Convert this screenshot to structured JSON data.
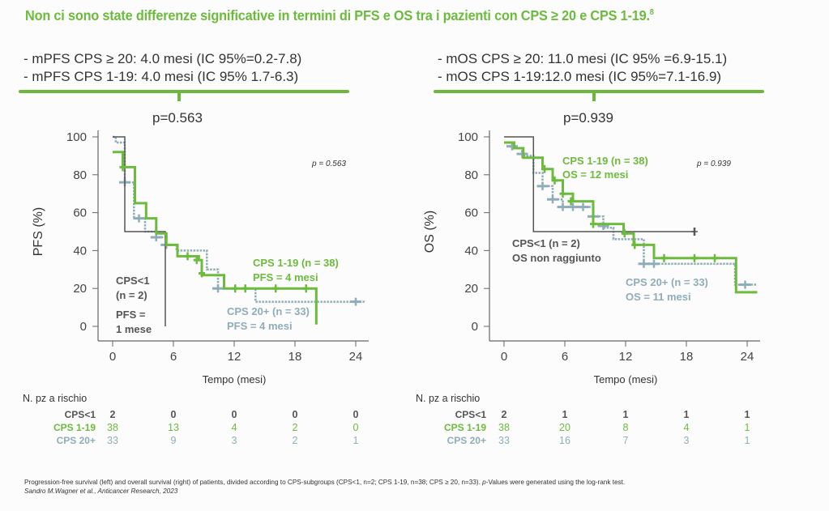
{
  "title": "Non ci sono state differenze significative in termini di PFS e OS tra i pazienti con CPS ≥ 20 e CPS 1-19.",
  "title_ref": "8",
  "colors": {
    "cps_lt1": "#555555",
    "cps_1_19": "#6cbb3c",
    "cps_20plus": "#8fadb8",
    "accent": "#6db73c"
  },
  "left_panel": {
    "median_lines": [
      "- mPFS CPS ≥ 20: 4.0 mesi (IC 95%=0.2-7.8)",
      "- mPFS CPS 1-19: 4.0 mesi (IC 95% 1.7-6.3)"
    ],
    "p_value_label": "p=0.563"
  },
  "right_panel": {
    "median_lines": [
      "- mOS CPS ≥ 20: 11.0 mesi (IC 95% =6.9-15.1)",
      "- mOS CPS 1-19:12.0 mesi (IC 95%=7.1-16.9)"
    ],
    "p_value_label": "p=0.939"
  },
  "chart_data": [
    {
      "type": "line",
      "subtype": "kaplan-meier",
      "title": "",
      "xlabel": "Tempo (mesi)",
      "ylabel": "PFS (%)",
      "xlim": [
        0,
        25
      ],
      "ylim": [
        0,
        100
      ],
      "xticks": [
        "0",
        "6",
        "12",
        "18",
        "24"
      ],
      "yticks": [
        "0",
        "20",
        "40",
        "60",
        "80",
        "100"
      ],
      "annotation_p": "p = 0.563",
      "annotations": [
        {
          "series": "CPS<1",
          "lines": [
            "CPS<1",
            "(n = 2)",
            "PFS =",
            "1 mese"
          ]
        },
        {
          "series": "CPS 1-19",
          "lines": [
            "CPS 1-19 (n = 38)",
            "PFS = 4 mesi"
          ]
        },
        {
          "series": "CPS 20+",
          "lines": [
            "CPS 20+ (n = 33)",
            "PFS = 4 mesi"
          ]
        }
      ],
      "series": [
        {
          "name": "CPS<1",
          "style": "solid-thin",
          "steps": [
            [
              0,
              100
            ],
            [
              1.2,
              100
            ],
            [
              1.2,
              50
            ],
            [
              5.2,
              50
            ],
            [
              5.2,
              0
            ]
          ],
          "censors": []
        },
        {
          "name": "CPS 1-19",
          "style": "solid-thick",
          "steps": [
            [
              0,
              92
            ],
            [
              1,
              92
            ],
            [
              1,
              84
            ],
            [
              2.2,
              84
            ],
            [
              2.2,
              65
            ],
            [
              3.3,
              65
            ],
            [
              3.3,
              57
            ],
            [
              4.3,
              57
            ],
            [
              4.3,
              49
            ],
            [
              5.3,
              49
            ],
            [
              5.3,
              43
            ],
            [
              6.4,
              43
            ],
            [
              6.4,
              37
            ],
            [
              8.5,
              37
            ],
            [
              8.5,
              35
            ],
            [
              8.8,
              35
            ],
            [
              8.8,
              27
            ],
            [
              11.0,
              27
            ],
            [
              11.0,
              20
            ],
            [
              20.1,
              20
            ],
            [
              20.1,
              1
            ]
          ],
          "censors": [
            [
              1,
              84
            ],
            [
              7.4,
              37
            ],
            [
              8.3,
              35
            ],
            [
              8.8,
              28
            ],
            [
              12.1,
              20
            ],
            [
              13.1,
              20
            ],
            [
              16.1,
              20
            ],
            [
              19.1,
              20
            ]
          ]
        },
        {
          "name": "CPS 20+",
          "style": "dotted",
          "steps": [
            [
              0,
              100
            ],
            [
              0.3,
              100
            ],
            [
              0.3,
              97
            ],
            [
              1.2,
              97
            ],
            [
              1.2,
              76
            ],
            [
              2.1,
              76
            ],
            [
              2.1,
              57
            ],
            [
              3.2,
              57
            ],
            [
              3.2,
              50
            ],
            [
              4.3,
              50
            ],
            [
              4.3,
              47
            ],
            [
              5.3,
              47
            ],
            [
              5.3,
              43
            ],
            [
              6.3,
              43
            ],
            [
              6.3,
              40
            ],
            [
              9.3,
              40
            ],
            [
              9.3,
              30
            ],
            [
              10.4,
              30
            ],
            [
              10.4,
              20
            ],
            [
              14.1,
              20
            ],
            [
              14.1,
              13
            ],
            [
              25,
              13
            ]
          ],
          "censors": [
            [
              1.2,
              76
            ],
            [
              2.6,
              57
            ],
            [
              4.3,
              47
            ],
            [
              5.3,
              43
            ],
            [
              10.4,
              20
            ],
            [
              24,
              13
            ]
          ]
        }
      ],
      "at_risk": {
        "label": "N. pz a rischio",
        "times": [
          0,
          6,
          12,
          18,
          24
        ],
        "rows": [
          {
            "name": "CPS<1",
            "values": [
              2,
              0,
              0,
              0,
              0
            ]
          },
          {
            "name": "CPS 1-19",
            "values": [
              38,
              13,
              4,
              2,
              0
            ]
          },
          {
            "name": "CPS 20+",
            "values": [
              33,
              9,
              3,
              2,
              1
            ]
          }
        ]
      }
    },
    {
      "type": "line",
      "subtype": "kaplan-meier",
      "title": "",
      "xlabel": "Tempo (mesi)",
      "ylabel": "OS (%)",
      "xlim": [
        0,
        25
      ],
      "ylim": [
        0,
        100
      ],
      "xticks": [
        "0",
        "6",
        "12",
        "18",
        "24"
      ],
      "yticks": [
        "0",
        "20",
        "40",
        "60",
        "80",
        "100"
      ],
      "annotation_p": "p = 0.939",
      "annotations": [
        {
          "series": "CPS 1-19",
          "lines": [
            "CPS 1-19 (n = 38)",
            "OS = 12 mesi"
          ]
        },
        {
          "series": "CPS<1",
          "lines": [
            "CPS<1 (n = 2)",
            "OS non raggiunto"
          ]
        },
        {
          "series": "CPS 20+",
          "lines": [
            "CPS 20+ (n = 33)",
            "OS = 11 mesi"
          ]
        }
      ],
      "series": [
        {
          "name": "CPS<1",
          "style": "solid-thin",
          "steps": [
            [
              0,
              100
            ],
            [
              2.9,
              100
            ],
            [
              2.9,
              50
            ],
            [
              18.8,
              50
            ]
          ],
          "censors": [
            [
              18.8,
              50
            ]
          ]
        },
        {
          "name": "CPS 1-19",
          "style": "solid-thick",
          "steps": [
            [
              0,
              97
            ],
            [
              1,
              97
            ],
            [
              1,
              94
            ],
            [
              1.9,
              94
            ],
            [
              1.9,
              89
            ],
            [
              3.8,
              89
            ],
            [
              3.8,
              83
            ],
            [
              4.8,
              83
            ],
            [
              4.8,
              77
            ],
            [
              5.8,
              77
            ],
            [
              5.8,
              70
            ],
            [
              6.8,
              70
            ],
            [
              6.8,
              66
            ],
            [
              8.8,
              66
            ],
            [
              8.8,
              54
            ],
            [
              11.8,
              54
            ],
            [
              11.8,
              49
            ],
            [
              12.8,
              49
            ],
            [
              12.8,
              43
            ],
            [
              14.8,
              43
            ],
            [
              14.8,
              36
            ],
            [
              22.9,
              36
            ],
            [
              22.9,
              18
            ],
            [
              25,
              18
            ]
          ],
          "censors": [
            [
              4.0,
              83
            ],
            [
              5.0,
              77
            ],
            [
              5.8,
              70
            ],
            [
              6.6,
              66
            ],
            [
              8.8,
              54
            ],
            [
              11.9,
              49
            ],
            [
              12.9,
              43
            ],
            [
              15.8,
              36
            ],
            [
              18.8,
              36
            ],
            [
              20.8,
              36
            ]
          ]
        },
        {
          "name": "CPS 20+",
          "style": "dotted",
          "steps": [
            [
              0,
              97
            ],
            [
              0.8,
              97
            ],
            [
              0.8,
              94
            ],
            [
              1.8,
              94
            ],
            [
              1.8,
              90
            ],
            [
              2.9,
              90
            ],
            [
              2.9,
              81
            ],
            [
              3.8,
              81
            ],
            [
              3.8,
              74
            ],
            [
              4.8,
              74
            ],
            [
              4.8,
              67
            ],
            [
              5.8,
              67
            ],
            [
              5.8,
              63
            ],
            [
              8.8,
              63
            ],
            [
              8.8,
              58
            ],
            [
              9.8,
              58
            ],
            [
              9.8,
              52
            ],
            [
              10.8,
              52
            ],
            [
              10.8,
              46
            ],
            [
              13.8,
              46
            ],
            [
              13.8,
              33
            ],
            [
              22.8,
              33
            ],
            [
              22.8,
              22
            ],
            [
              25,
              22
            ]
          ],
          "censors": [
            [
              0.8,
              95
            ],
            [
              1.8,
              91
            ],
            [
              3.8,
              74
            ],
            [
              4.8,
              67
            ],
            [
              5.8,
              63
            ],
            [
              6.8,
              63
            ],
            [
              7.8,
              63
            ],
            [
              8.8,
              58
            ],
            [
              9.8,
              53
            ],
            [
              13.8,
              33
            ],
            [
              14.8,
              33
            ],
            [
              23.8,
              22
            ]
          ]
        }
      ],
      "at_risk": {
        "label": "N. pz a rischio",
        "times": [
          0,
          6,
          12,
          18,
          24
        ],
        "rows": [
          {
            "name": "CPS<1",
            "values": [
              2,
              1,
              1,
              1,
              1
            ]
          },
          {
            "name": "CPS 1-19",
            "values": [
              38,
              20,
              8,
              4,
              1
            ]
          },
          {
            "name": "CPS 20+",
            "values": [
              33,
              16,
              7,
              3,
              1
            ]
          }
        ]
      }
    }
  ],
  "caption": {
    "line1_pre": "Progression-free survival (left) and overall survival (right) of patients, divided according to CPS-subgroups (CPS<1, n=2; CPS 1-19, n=38; CPS ≥ 20, n=33). ",
    "line1_p": "p",
    "line1_post": "-Values were generated using the log-rank test.",
    "citation": "Sandro M.Wagner et al., Anticancer Research, 2023"
  }
}
